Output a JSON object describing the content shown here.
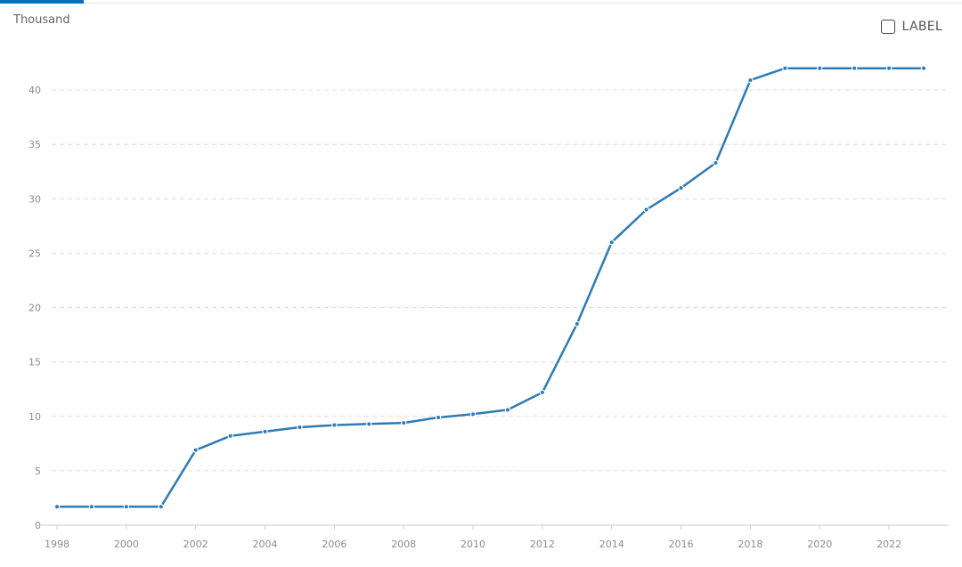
{
  "chart_data": {
    "type": "line",
    "unit_label": "Thousand",
    "legend_toggle": {
      "label": "LABEL",
      "checked": false
    },
    "x": [
      1998,
      1999,
      2000,
      2001,
      2002,
      2003,
      2004,
      2005,
      2006,
      2007,
      2008,
      2009,
      2010,
      2011,
      2012,
      2013,
      2014,
      2015,
      2016,
      2017,
      2018,
      2019,
      2020,
      2021,
      2022,
      2023
    ],
    "series": [
      {
        "values": [
          1.7,
          1.7,
          1.7,
          1.7,
          6.9,
          8.2,
          8.6,
          9.0,
          9.2,
          9.3,
          9.4,
          9.9,
          10.2,
          10.6,
          12.2,
          18.5,
          26.0,
          29.0,
          31.0,
          33.3,
          40.9,
          42.0,
          42.0,
          42.0,
          42.0,
          42.0
        ],
        "color": "#2e7bb5"
      }
    ],
    "x_ticks": [
      "1998",
      "2000",
      "2002",
      "2004",
      "2006",
      "2008",
      "2010",
      "2012",
      "2014",
      "2016",
      "2018",
      "2020",
      "2022"
    ],
    "y_ticks": [
      "0",
      "5",
      "10",
      "15",
      "20",
      "25",
      "30",
      "35",
      "40"
    ],
    "xlim": [
      1998,
      2023
    ],
    "ylim": [
      0,
      45
    ],
    "grid": "horizontal-dashed"
  }
}
